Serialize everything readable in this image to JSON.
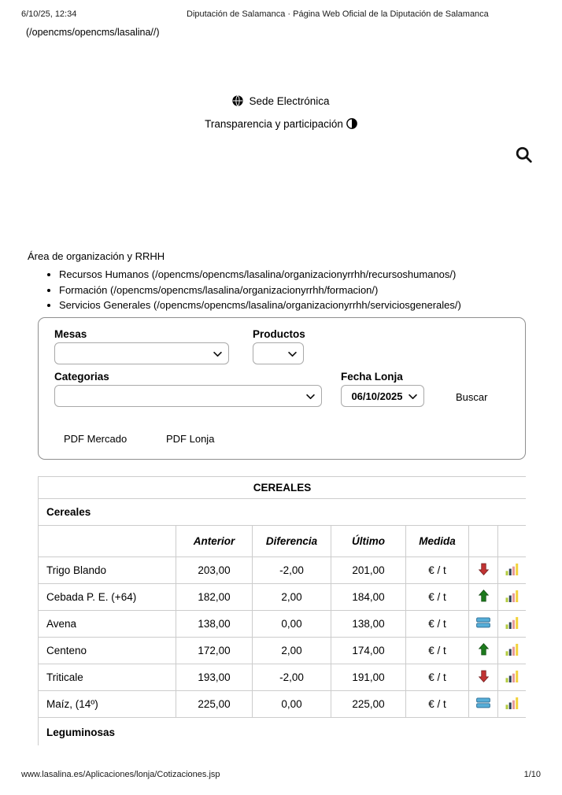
{
  "page": {
    "print_date": "6/10/25, 12:34",
    "print_title": "Diputación de Salamanca · Página Web Oficial de la Diputación de Salamanca",
    "home_link": "(/opencms/opencms/lasalina//)",
    "footer_url": "www.lasalina.es/Aplicaciones/lonja/Cotizaciones.jsp",
    "footer_page": "1/10"
  },
  "header_links": {
    "sede": "Sede Electrónica",
    "transparencia": "Transparencia y participación"
  },
  "nav": {
    "title": "Área de organización y RRHH",
    "items": [
      "Recursos Humanos (/opencms/opencms/lasalina/organizacionyrrhh/recursoshumanos/)",
      "Formación (/opencms/opencms/lasalina/organizacionyrrhh/formacion/)",
      "Servicios Generales (/opencms/opencms/lasalina/organizacionyrrhh/serviciosgenerales/)"
    ]
  },
  "filter_form": {
    "mesas_label": "Mesas",
    "productos_label": "Productos",
    "categorias_label": "Categorias",
    "fecha_label": "Fecha Lonja",
    "fecha_value": "06/10/2025",
    "buscar_label": "Buscar",
    "pdf_mercado": "PDF Mercado",
    "pdf_lonja": "PDF Lonja"
  },
  "table": {
    "title": "CEREALES",
    "section": "Cereales",
    "next_section": "Leguminosas",
    "columns": [
      "Anterior",
      "Diferencia",
      "Último",
      "Medida"
    ],
    "rows": [
      {
        "name": "Trigo Blando",
        "anterior": "203,00",
        "diferencia": "-2,00",
        "ultimo": "201,00",
        "medida": "€ / t",
        "trend": "down"
      },
      {
        "name": "Cebada P. E. (+64)",
        "anterior": "182,00",
        "diferencia": "2,00",
        "ultimo": "184,00",
        "medida": "€ / t",
        "trend": "up"
      },
      {
        "name": "Avena",
        "anterior": "138,00",
        "diferencia": "0,00",
        "ultimo": "138,00",
        "medida": "€ / t",
        "trend": "equal"
      },
      {
        "name": "Centeno",
        "anterior": "172,00",
        "diferencia": "2,00",
        "ultimo": "174,00",
        "medida": "€ / t",
        "trend": "up"
      },
      {
        "name": "Triticale",
        "anterior": "193,00",
        "diferencia": "-2,00",
        "ultimo": "191,00",
        "medida": "€ / t",
        "trend": "down"
      },
      {
        "name": "Maíz, (14º)",
        "anterior": "225,00",
        "diferencia": "0,00",
        "ultimo": "225,00",
        "medida": "€ / t",
        "trend": "equal"
      }
    ]
  },
  "colors": {
    "trend_up": "#1d7a1d",
    "trend_down": "#c13333",
    "trend_equal": "#56aed8",
    "chart_green": "#b3cc40",
    "chart_navy": "#2e3f54",
    "chart_red": "#e59a9a",
    "chart_yellow": "#f2d23a"
  }
}
